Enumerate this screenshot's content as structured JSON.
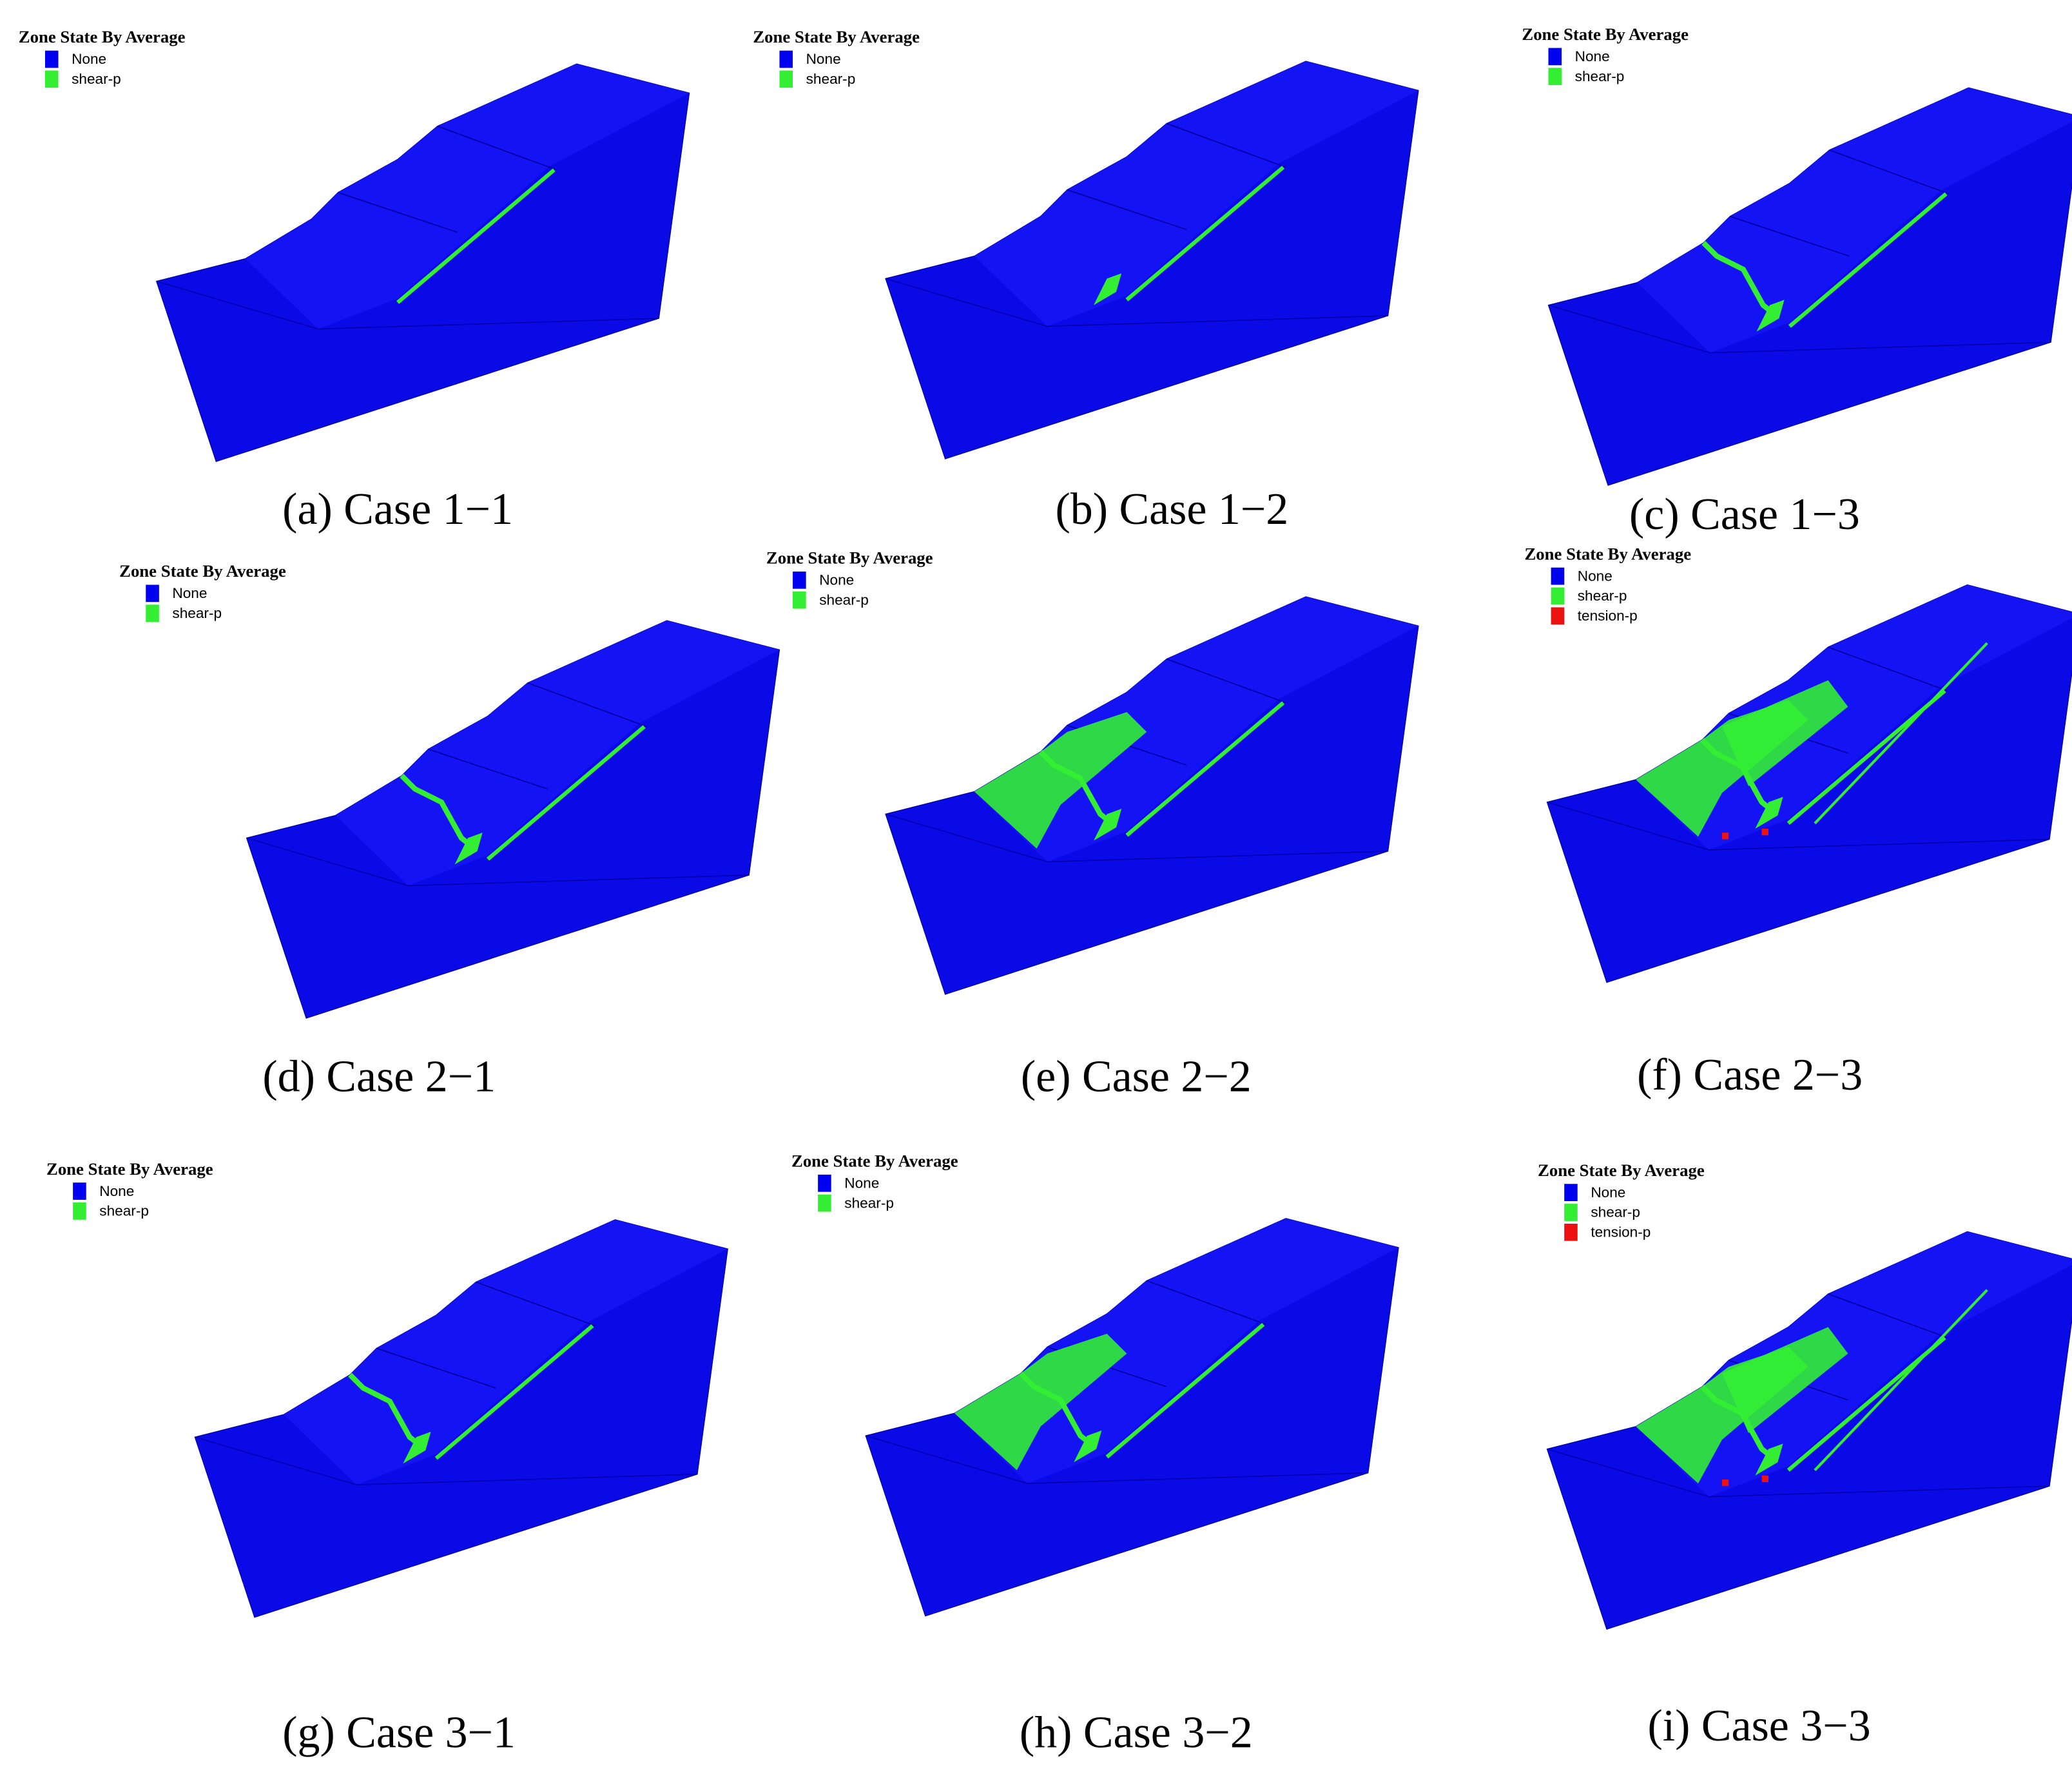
{
  "panels": [
    {
      "legend_title": "Zone State By Average",
      "legend": [
        {
          "label": "None",
          "color": "#0000f0"
        },
        {
          "label": "shear-p",
          "color": "#33ee33"
        }
      ],
      "caption": "(a) Case 1−1"
    },
    {
      "legend_title": "Zone State By Average",
      "legend": [
        {
          "label": "None",
          "color": "#0000f0"
        },
        {
          "label": "shear-p",
          "color": "#33ee33"
        }
      ],
      "caption": "(b) Case 1−2"
    },
    {
      "legend_title": "Zone State By Average",
      "legend": [
        {
          "label": "None",
          "color": "#0000f0"
        },
        {
          "label": "shear-p",
          "color": "#33ee33"
        }
      ],
      "caption": "(c) Case 1−3"
    },
    {
      "legend_title": "Zone State By Average",
      "legend": [
        {
          "label": "None",
          "color": "#0000f0"
        },
        {
          "label": "shear-p",
          "color": "#33ee33"
        }
      ],
      "caption": "(d) Case 2−1"
    },
    {
      "legend_title": "Zone State By Average",
      "legend": [
        {
          "label": "None",
          "color": "#0000f0"
        },
        {
          "label": "shear-p",
          "color": "#33ee33"
        }
      ],
      "caption": "(e) Case 2−2"
    },
    {
      "legend_title": "Zone State By Average",
      "legend": [
        {
          "label": "None",
          "color": "#0000f0"
        },
        {
          "label": "shear-p",
          "color": "#33ee33"
        },
        {
          "label": "tension-p",
          "color": "#ee1111"
        }
      ],
      "caption": "(f) Case 2−3"
    },
    {
      "legend_title": "Zone State By Average",
      "legend": [
        {
          "label": "None",
          "color": "#0000f0"
        },
        {
          "label": "shear-p",
          "color": "#33ee33"
        }
      ],
      "caption": "(g) Case 3−1"
    },
    {
      "legend_title": "Zone State By Average",
      "legend": [
        {
          "label": "None",
          "color": "#0000f0"
        },
        {
          "label": "shear-p",
          "color": "#33ee33"
        }
      ],
      "caption": "(h) Case 3−2"
    },
    {
      "legend_title": "Zone State By Average",
      "legend": [
        {
          "label": "None",
          "color": "#0000f0"
        },
        {
          "label": "shear-p",
          "color": "#33ee33"
        },
        {
          "label": "tension-p",
          "color": "#ee1111"
        }
      ],
      "caption": "(i) Case 3−3"
    }
  ]
}
